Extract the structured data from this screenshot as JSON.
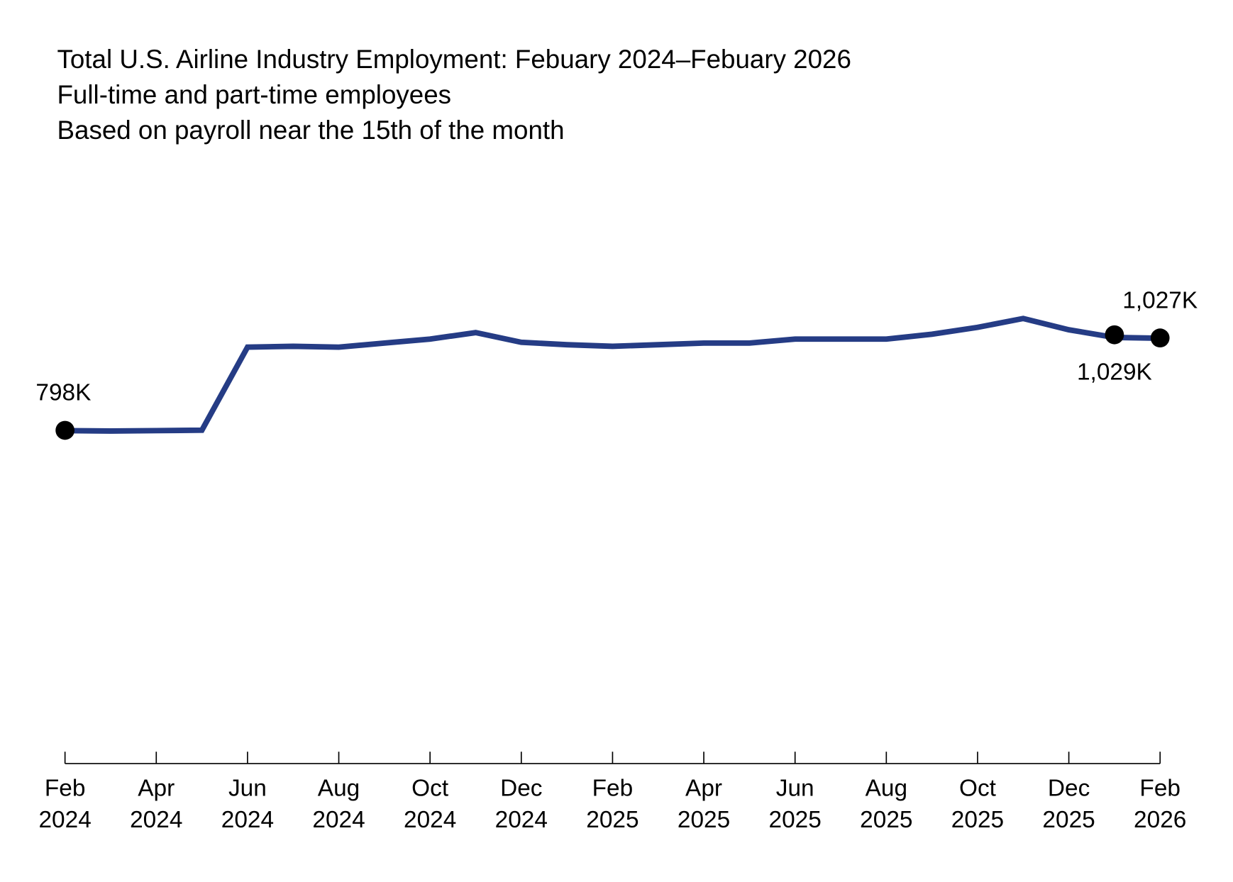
{
  "chart_data": {
    "type": "line",
    "title": "Total U.S. Airline Industry Employment: Febuary 2024–Febuary 2026",
    "subtitle_lines": [
      "Full-time and part-time employees",
      "Based on payroll near the 15th of the month"
    ],
    "xlabel": "",
    "ylabel": "",
    "ylim": [
      0,
      1200
    ],
    "y_axis_visible": false,
    "grid": false,
    "colors": {
      "line": "#253C85",
      "marker": "#000000"
    },
    "x": [
      "2024-02",
      "2024-03",
      "2024-04",
      "2024-05",
      "2024-06",
      "2024-07",
      "2024-08",
      "2024-09",
      "2024-10",
      "2024-11",
      "2024-12",
      "2025-01",
      "2025-02",
      "2025-03",
      "2025-04",
      "2025-05",
      "2025-06",
      "2025-07",
      "2025-08",
      "2025-09",
      "2025-10",
      "2025-11",
      "2025-12",
      "2026-01",
      "2026-02"
    ],
    "series": [
      {
        "values": [
          798,
          797,
          798,
          799,
          1005,
          1007,
          1005,
          1015,
          1025,
          1041,
          1017,
          1011,
          1007,
          1011,
          1015,
          1015,
          1025,
          1025,
          1025,
          1037,
          1054,
          1076,
          1048,
          1029,
          1027
        ]
      }
    ],
    "x_ticks": [
      {
        "month": "Feb",
        "year": "2024",
        "index": 0
      },
      {
        "month": "Apr",
        "year": "2024",
        "index": 2
      },
      {
        "month": "Jun",
        "year": "2024",
        "index": 4
      },
      {
        "month": "Aug",
        "year": "2024",
        "index": 6
      },
      {
        "month": "Oct",
        "year": "2024",
        "index": 8
      },
      {
        "month": "Dec",
        "year": "2024",
        "index": 10
      },
      {
        "month": "Feb",
        "year": "2025",
        "index": 12
      },
      {
        "month": "Apr",
        "year": "2025",
        "index": 14
      },
      {
        "month": "Jun",
        "year": "2025",
        "index": 16
      },
      {
        "month": "Aug",
        "year": "2025",
        "index": 18
      },
      {
        "month": "Oct",
        "year": "2025",
        "index": 20
      },
      {
        "month": "Dec",
        "year": "2025",
        "index": 22
      },
      {
        "month": "Feb",
        "year": "2026",
        "index": 24
      }
    ],
    "annotations": [
      {
        "index": 0,
        "text": "798K",
        "position": "above"
      },
      {
        "index": 23,
        "text": "1,029K",
        "position": "below"
      },
      {
        "index": 24,
        "text": "1,027K",
        "position": "above"
      }
    ]
  }
}
